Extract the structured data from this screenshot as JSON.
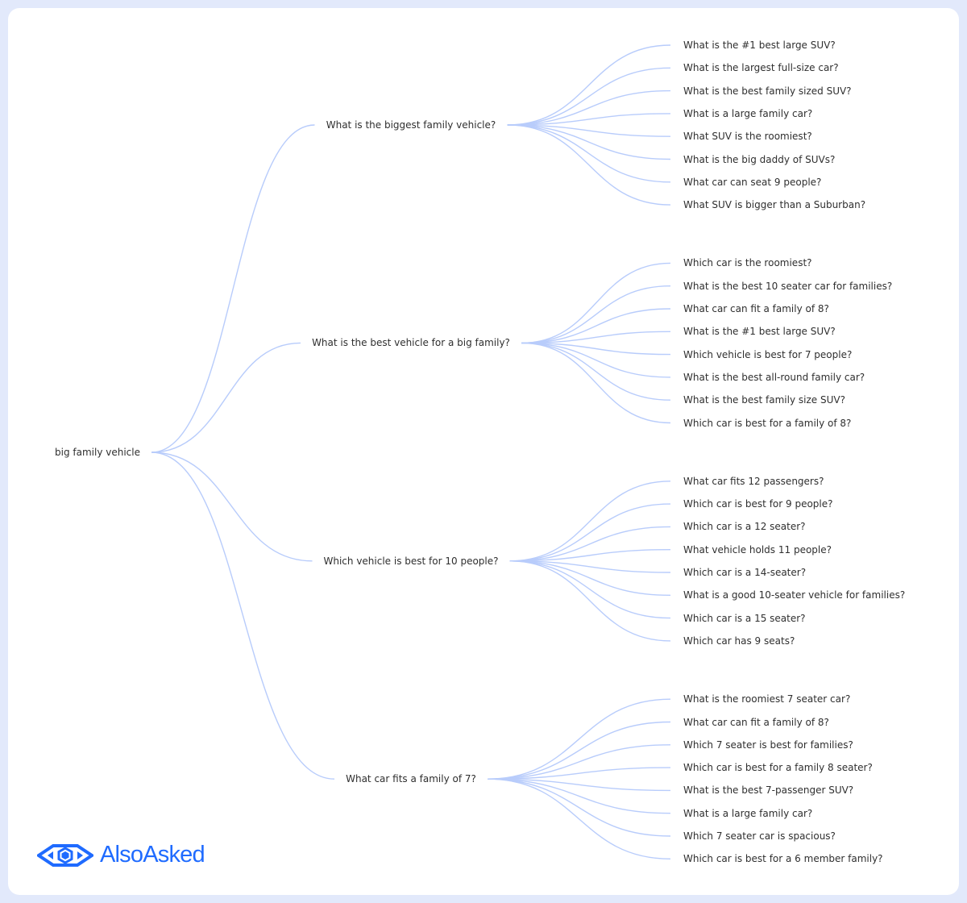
{
  "root": {
    "label": "big family vehicle"
  },
  "branches": [
    {
      "label": "What is the biggest family vehicle?",
      "children": [
        "What is the #1 best large SUV?",
        "What is the largest full-size car?",
        "What is the best family sized SUV?",
        "What is a large family car?",
        "What SUV is the roomiest?",
        "What is the big daddy of SUVs?",
        "What car can seat 9 people?",
        "What SUV is bigger than a Suburban?"
      ]
    },
    {
      "label": "What is the best vehicle for a big family?",
      "children": [
        "Which car is the roomiest?",
        "What is the best 10 seater car for families?",
        "What car can fit a family of 8?",
        "What is the #1 best large SUV?",
        "Which vehicle is best for 7 people?",
        "What is the best all-round family car?",
        "What is the best family size SUV?",
        "Which car is best for a family of 8?"
      ]
    },
    {
      "label": "Which vehicle is best for 10 people?",
      "children": [
        "What car fits 12 passengers?",
        "Which car is best for 9 people?",
        "Which car is a 12 seater?",
        "What vehicle holds 11 people?",
        "Which car is a 14-seater?",
        "What is a good 10-seater vehicle for families?",
        "Which car is a 15 seater?",
        "Which car has 9 seats?"
      ]
    },
    {
      "label": "What car fits a family of 7?",
      "children": [
        "What is the roomiest 7 seater car?",
        "What car can fit a family of 8?",
        "Which 7 seater is best for families?",
        "Which car is best for a family 8 seater?",
        "What is the best 7-passenger SUV?",
        "What is a large family car?",
        "Which 7 seater car is spacious?",
        "Which car is best for a 6 member family?"
      ]
    }
  ],
  "logo": {
    "text": "AlsoAsked",
    "icon": "eye-diamond-icon"
  },
  "colors": {
    "line": "#b8ccfb",
    "text": "#2f2f2f",
    "brand": "#1f6bff",
    "frame": "#e2e9fb"
  }
}
